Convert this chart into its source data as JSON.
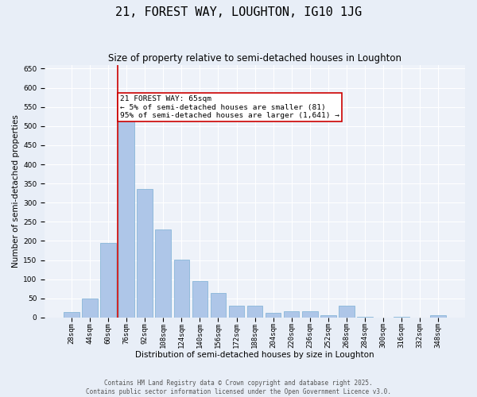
{
  "title": "21, FOREST WAY, LOUGHTON, IG10 1JG",
  "subtitle": "Size of property relative to semi-detached houses in Loughton",
  "xlabel": "Distribution of semi-detached houses by size in Loughton",
  "ylabel": "Number of semi-detached properties",
  "footer_line1": "Contains HM Land Registry data © Crown copyright and database right 2025.",
  "footer_line2": "Contains public sector information licensed under the Open Government Licence v3.0.",
  "bar_labels": [
    "28sqm",
    "44sqm",
    "60sqm",
    "76sqm",
    "92sqm",
    "108sqm",
    "124sqm",
    "140sqm",
    "156sqm",
    "172sqm",
    "188sqm",
    "204sqm",
    "220sqm",
    "236sqm",
    "252sqm",
    "268sqm",
    "284sqm",
    "300sqm",
    "316sqm",
    "332sqm",
    "348sqm"
  ],
  "bar_values": [
    15,
    50,
    195,
    527,
    335,
    229,
    151,
    95,
    63,
    30,
    30,
    13,
    16,
    17,
    6,
    30,
    2,
    0,
    2,
    0,
    5
  ],
  "bar_color": "#aec6e8",
  "bar_edge_color": "#7bafd4",
  "vline_x_idx": 2,
  "vline_color": "#cc0000",
  "annotation_text": "21 FOREST WAY: 65sqm\n← 5% of semi-detached houses are smaller (81)\n95% of semi-detached houses are larger (1,641) →",
  "annotation_box_color": "#cc0000",
  "ylim": [
    0,
    660
  ],
  "yticks": [
    0,
    50,
    100,
    150,
    200,
    250,
    300,
    350,
    400,
    450,
    500,
    550,
    600,
    650
  ],
  "bg_color": "#e8eef7",
  "plot_bg_color": "#eef2f9",
  "grid_color": "#ffffff",
  "title_fontsize": 11,
  "subtitle_fontsize": 8.5,
  "axis_label_fontsize": 7.5,
  "tick_fontsize": 6.5,
  "annotation_fontsize": 6.8,
  "footer_fontsize": 5.5
}
